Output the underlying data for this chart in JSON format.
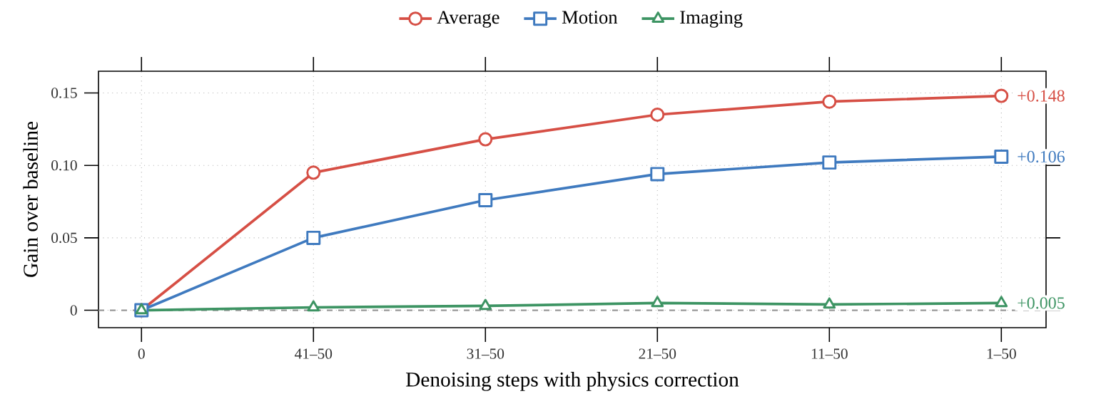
{
  "chart_data": {
    "type": "line",
    "xlabel": "Denoising steps with physics correction",
    "ylabel": "Gain over baseline",
    "categories": [
      "0",
      "41–50",
      "31–50",
      "21–50",
      "11–50",
      "1–50"
    ],
    "series": [
      {
        "name": "Average",
        "color": "#d64f45",
        "marker": "circle",
        "values": [
          0,
          0.095,
          0.118,
          0.135,
          0.144,
          0.148
        ]
      },
      {
        "name": "Motion",
        "color": "#3f7abf",
        "marker": "square",
        "values": [
          0,
          0.05,
          0.076,
          0.094,
          0.102,
          0.106
        ]
      },
      {
        "name": "Imaging",
        "color": "#3d9463",
        "marker": "triangle",
        "values": [
          0,
          0.002,
          0.003,
          0.005,
          0.004,
          0.005
        ]
      }
    ],
    "ylim": [
      -0.012,
      0.165
    ],
    "yticks": [
      0,
      0.05,
      {
        "value": 0.1,
        "label": "0.10"
      },
      0.15
    ],
    "grid": true,
    "legend": "top",
    "line_style": "solid",
    "ref_lines": [
      {
        "axis": "y",
        "value": 0,
        "color": "#999999",
        "line_style": "dashed"
      }
    ],
    "annotations": [
      {
        "text": "+0.148",
        "x": "1–50",
        "y": 0.148
      },
      {
        "text": "+0.106",
        "x": "1–50",
        "y": 0.106
      },
      {
        "text": "+0.005",
        "x": "1–50",
        "y": 0.005
      }
    ]
  }
}
